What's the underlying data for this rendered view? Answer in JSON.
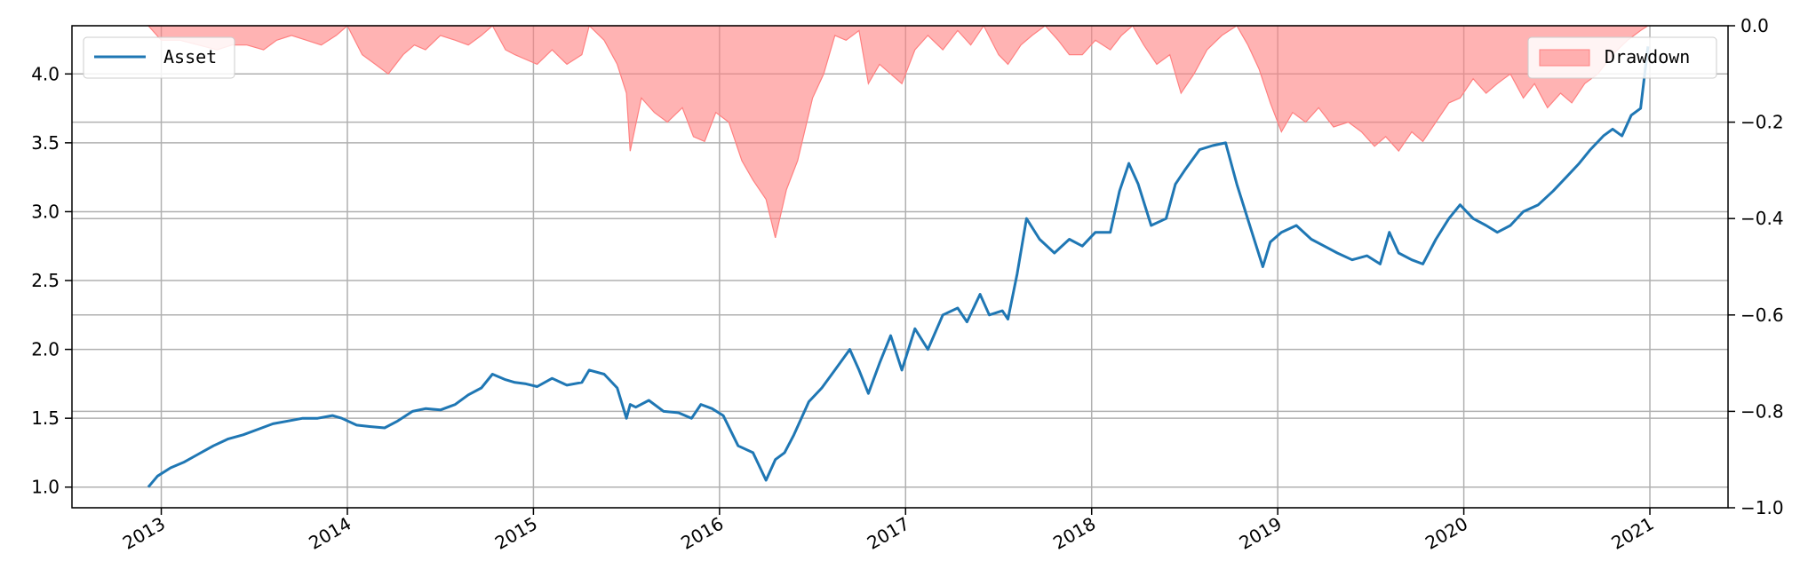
{
  "chart_data": {
    "type": "line",
    "title": "",
    "xlabel": "",
    "ylabel": "",
    "x_ticks": [
      "2013",
      "2014",
      "2015",
      "2016",
      "2017",
      "2018",
      "2019",
      "2020",
      "2021"
    ],
    "x_range": [
      2012.52,
      2021.42
    ],
    "y_left": {
      "range": [
        0.85,
        4.35
      ],
      "ticks": [
        "1.0",
        "1.5",
        "2.0",
        "2.5",
        "3.0",
        "3.5",
        "4.0"
      ]
    },
    "y_right": {
      "range": [
        -1.0,
        0.0
      ],
      "ticks": [
        "0.0",
        "−0.2",
        "−0.4",
        "−0.6",
        "−0.8",
        "−1.0"
      ]
    },
    "grid": true,
    "legends": [
      {
        "label": "Asset",
        "placement": "top-left"
      },
      {
        "label": "Drawdown",
        "placement": "top-right"
      }
    ],
    "colors": {
      "asset": "#1f77b4",
      "drawdown": "#ff8080"
    },
    "series": [
      {
        "name": "Asset",
        "axis": "left",
        "x": [
          2012.93,
          2012.98,
          2013.05,
          2013.12,
          2013.2,
          2013.28,
          2013.36,
          2013.44,
          2013.52,
          2013.6,
          2013.68,
          2013.76,
          2013.84,
          2013.92,
          2013.97,
          2014.05,
          2014.12,
          2014.2,
          2014.27,
          2014.35,
          2014.42,
          2014.5,
          2014.58,
          2014.65,
          2014.72,
          2014.78,
          2014.85,
          2014.9,
          2014.96,
          2015.02,
          2015.1,
          2015.18,
          2015.26,
          2015.3,
          2015.38,
          2015.45,
          2015.5,
          2015.52,
          2015.55,
          2015.62,
          2015.7,
          2015.78,
          2015.85,
          2015.9,
          2015.96,
          2016.02,
          2016.1,
          2016.18,
          2016.25,
          2016.3,
          2016.35,
          2016.4,
          2016.48,
          2016.55,
          2016.62,
          2016.7,
          2016.75,
          2016.8,
          2016.86,
          2016.92,
          2016.98,
          2017.05,
          2017.12,
          2017.2,
          2017.28,
          2017.33,
          2017.4,
          2017.45,
          2017.52,
          2017.55,
          2017.6,
          2017.65,
          2017.72,
          2017.8,
          2017.88,
          2017.95,
          2018.02,
          2018.1,
          2018.15,
          2018.2,
          2018.25,
          2018.32,
          2018.4,
          2018.45,
          2018.5,
          2018.58,
          2018.65,
          2018.72,
          2018.78,
          2018.85,
          2018.92,
          2018.96,
          2019.02,
          2019.1,
          2019.18,
          2019.25,
          2019.32,
          2019.4,
          2019.48,
          2019.55,
          2019.6,
          2019.65,
          2019.72,
          2019.78,
          2019.85,
          2019.92,
          2019.98,
          2020.05,
          2020.12,
          2020.18,
          2020.25,
          2020.32,
          2020.4,
          2020.48,
          2020.55,
          2020.62,
          2020.68,
          2020.75,
          2020.8,
          2020.85,
          2020.9,
          2020.95,
          2020.99
        ],
        "y": [
          1.0,
          1.08,
          1.14,
          1.18,
          1.24,
          1.3,
          1.35,
          1.38,
          1.42,
          1.46,
          1.48,
          1.5,
          1.5,
          1.52,
          1.5,
          1.45,
          1.44,
          1.43,
          1.48,
          1.55,
          1.57,
          1.56,
          1.6,
          1.67,
          1.72,
          1.82,
          1.78,
          1.76,
          1.75,
          1.73,
          1.79,
          1.74,
          1.76,
          1.85,
          1.82,
          1.72,
          1.5,
          1.6,
          1.58,
          1.63,
          1.55,
          1.54,
          1.5,
          1.6,
          1.57,
          1.52,
          1.3,
          1.25,
          1.05,
          1.2,
          1.25,
          1.38,
          1.62,
          1.72,
          1.85,
          2.0,
          1.85,
          1.68,
          1.9,
          2.1,
          1.85,
          2.15,
          2.0,
          2.25,
          2.3,
          2.2,
          2.4,
          2.25,
          2.28,
          2.22,
          2.55,
          2.95,
          2.8,
          2.7,
          2.8,
          2.75,
          2.85,
          2.85,
          3.15,
          3.35,
          3.2,
          2.9,
          2.95,
          3.2,
          3.3,
          3.45,
          3.48,
          3.5,
          3.2,
          2.9,
          2.6,
          2.78,
          2.85,
          2.9,
          2.8,
          2.75,
          2.7,
          2.65,
          2.68,
          2.62,
          2.85,
          2.7,
          2.65,
          2.62,
          2.8,
          2.95,
          3.05,
          2.95,
          2.9,
          2.85,
          2.9,
          3.0,
          3.05,
          3.15,
          3.25,
          3.35,
          3.45,
          3.55,
          3.6,
          3.55,
          3.7,
          3.75,
          4.2
        ]
      },
      {
        "name": "Drawdown",
        "axis": "right",
        "x": [
          2012.93,
          2013.0,
          2013.1,
          2013.2,
          2013.3,
          2013.38,
          2013.46,
          2013.55,
          2013.62,
          2013.7,
          2013.78,
          2013.86,
          2013.94,
          2014.0,
          2014.08,
          2014.15,
          2014.22,
          2014.3,
          2014.36,
          2014.42,
          2014.5,
          2014.58,
          2014.65,
          2014.72,
          2014.78,
          2014.85,
          2014.9,
          2014.96,
          2015.02,
          2015.1,
          2015.18,
          2015.26,
          2015.3,
          2015.38,
          2015.45,
          2015.5,
          2015.52,
          2015.58,
          2015.65,
          2015.72,
          2015.8,
          2015.86,
          2015.92,
          2015.98,
          2016.05,
          2016.12,
          2016.18,
          2016.25,
          2016.3,
          2016.36,
          2016.42,
          2016.5,
          2016.56,
          2016.62,
          2016.68,
          2016.75,
          2016.8,
          2016.86,
          2016.92,
          2016.98,
          2017.05,
          2017.12,
          2017.2,
          2017.28,
          2017.35,
          2017.42,
          2017.5,
          2017.55,
          2017.62,
          2017.68,
          2017.75,
          2017.82,
          2017.88,
          2017.95,
          2018.02,
          2018.1,
          2018.16,
          2018.22,
          2018.28,
          2018.35,
          2018.42,
          2018.48,
          2018.55,
          2018.62,
          2018.7,
          2018.78,
          2018.84,
          2018.9,
          2018.96,
          2019.02,
          2019.08,
          2019.15,
          2019.22,
          2019.3,
          2019.38,
          2019.45,
          2019.52,
          2019.58,
          2019.65,
          2019.72,
          2019.78,
          2019.85,
          2019.92,
          2019.98,
          2020.05,
          2020.12,
          2020.18,
          2020.25,
          2020.32,
          2020.38,
          2020.45,
          2020.52,
          2020.58,
          2020.65,
          2020.72,
          2020.8,
          2020.88,
          2020.95,
          2020.99
        ],
        "y": [
          0.0,
          -0.03,
          -0.03,
          -0.04,
          -0.05,
          -0.04,
          -0.04,
          -0.05,
          -0.03,
          -0.02,
          -0.03,
          -0.04,
          -0.02,
          0.0,
          -0.06,
          -0.08,
          -0.1,
          -0.06,
          -0.04,
          -0.05,
          -0.02,
          -0.03,
          -0.04,
          -0.02,
          0.0,
          -0.05,
          -0.06,
          -0.07,
          -0.08,
          -0.05,
          -0.08,
          -0.06,
          0.0,
          -0.03,
          -0.08,
          -0.14,
          -0.26,
          -0.15,
          -0.18,
          -0.2,
          -0.17,
          -0.23,
          -0.24,
          -0.18,
          -0.2,
          -0.28,
          -0.32,
          -0.36,
          -0.44,
          -0.34,
          -0.28,
          -0.15,
          -0.1,
          -0.02,
          -0.03,
          -0.01,
          -0.12,
          -0.08,
          -0.1,
          -0.12,
          -0.05,
          -0.02,
          -0.05,
          -0.01,
          -0.04,
          0.0,
          -0.06,
          -0.08,
          -0.04,
          -0.02,
          0.0,
          -0.03,
          -0.06,
          -0.06,
          -0.03,
          -0.05,
          -0.02,
          0.0,
          -0.04,
          -0.08,
          -0.06,
          -0.14,
          -0.1,
          -0.05,
          -0.02,
          0.0,
          -0.04,
          -0.09,
          -0.16,
          -0.22,
          -0.18,
          -0.2,
          -0.17,
          -0.21,
          -0.2,
          -0.22,
          -0.25,
          -0.23,
          -0.26,
          -0.22,
          -0.24,
          -0.2,
          -0.16,
          -0.15,
          -0.11,
          -0.14,
          -0.12,
          -0.1,
          -0.15,
          -0.12,
          -0.17,
          -0.14,
          -0.16,
          -0.12,
          -0.1,
          -0.06,
          -0.03,
          -0.01,
          0.0
        ]
      }
    ]
  }
}
